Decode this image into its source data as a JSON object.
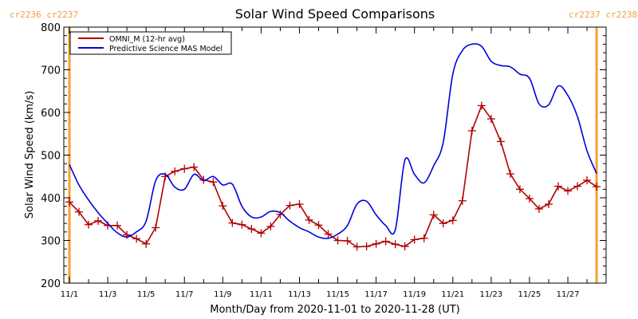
{
  "chart_data": {
    "type": "line",
    "title": "Solar Wind Speed Comparisons",
    "xlabel": "Month/Day from 2020-11-01 to 2020-11-28 (UT)",
    "ylabel": "Solar Wind Speed (km/s)",
    "ylim": [
      200,
      800
    ],
    "yticks": [
      200,
      300,
      400,
      500,
      600,
      700,
      800
    ],
    "ytick_labels": [
      "200",
      "300",
      "400",
      "500",
      "600",
      "700",
      "800"
    ],
    "xlim_days": [
      -0.3,
      27.95
    ],
    "xticks_days": [
      0,
      2,
      4,
      6,
      8,
      10,
      12,
      14,
      16,
      18,
      20,
      22,
      24,
      26
    ],
    "xtick_labels": [
      "11/1",
      "11/3",
      "11/5",
      "11/7",
      "11/9",
      "11/11",
      "11/13",
      "11/15",
      "11/17",
      "11/19",
      "11/21",
      "11/23",
      "11/25",
      "11/27"
    ],
    "x_step_days": 0.5,
    "grid": false,
    "legend_position": "top-left",
    "series": [
      {
        "name": "OMNI_M (12-hr avg)",
        "color": "#b00000",
        "markers": true,
        "values": [
          390,
          367,
          337,
          346,
          335,
          335,
          313,
          304,
          292,
          330,
          450,
          462,
          468,
          472,
          442,
          437,
          381,
          341,
          337,
          327,
          317,
          333,
          361,
          382,
          385,
          348,
          336,
          315,
          300,
          299,
          285,
          286,
          292,
          298,
          291,
          286,
          302,
          305,
          360,
          340,
          347,
          393,
          557,
          616,
          585,
          532,
          456,
          420,
          398,
          374,
          385,
          427,
          416,
          427,
          441,
          426
        ]
      },
      {
        "name": "Predictive Science MAS Model",
        "color": "#0000e0",
        "markers": false,
        "values": [
          478,
          430,
          395,
          365,
          340,
          318,
          308,
          320,
          345,
          440,
          455,
          425,
          420,
          455,
          440,
          450,
          430,
          432,
          380,
          355,
          355,
          368,
          365,
          345,
          330,
          320,
          308,
          305,
          315,
          335,
          385,
          392,
          360,
          335,
          325,
          488,
          455,
          435,
          475,
          530,
          690,
          745,
          760,
          755,
          720,
          710,
          707,
          690,
          680,
          620,
          618,
          662,
          640,
          590,
          510,
          457
        ]
      }
    ],
    "carrington_markers": [
      {
        "day": 0.0,
        "labels": [
          "cr2236",
          "cr2237"
        ],
        "side": "left"
      },
      {
        "day": 27.5,
        "labels": [
          "cr2237",
          "cr2238"
        ],
        "side": "right"
      }
    ],
    "marker_color": "#f5a030"
  }
}
